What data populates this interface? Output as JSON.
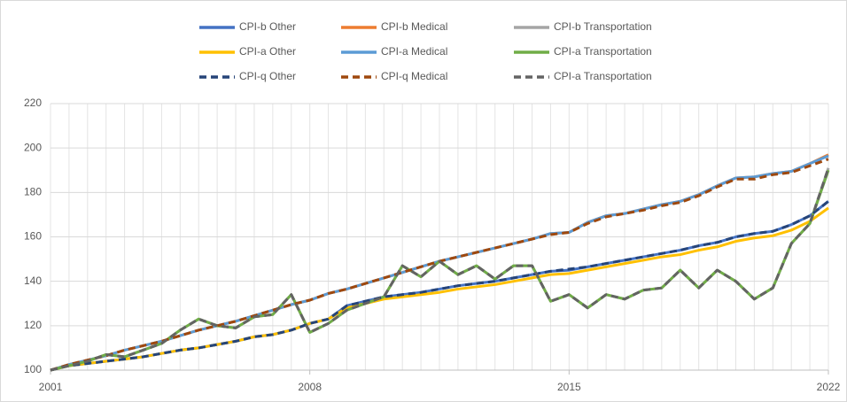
{
  "chart_data": {
    "type": "line",
    "x": [
      2001,
      2001.5,
      2002,
      2002.5,
      2003,
      2003.5,
      2004,
      2004.5,
      2005,
      2005.5,
      2006,
      2006.5,
      2007,
      2007.5,
      2008,
      2008.5,
      2009,
      2009.5,
      2010,
      2010.5,
      2011,
      2011.5,
      2012,
      2012.5,
      2013,
      2013.5,
      2014,
      2014.5,
      2015,
      2015.5,
      2016,
      2016.5,
      2017,
      2017.5,
      2018,
      2018.5,
      2019,
      2019.5,
      2020,
      2020.5,
      2021,
      2021.5,
      2022
    ],
    "xlim": [
      2001,
      2022
    ],
    "xticks": [
      2001,
      2008,
      2015,
      2022
    ],
    "ylim": [
      100,
      220
    ],
    "yticks": [
      100,
      120,
      140,
      160,
      180,
      200,
      220
    ],
    "grid": true,
    "series": [
      {
        "name": "CPI-b Other",
        "color": "#4472c4",
        "style": "solid",
        "values": [
          100,
          102,
          103,
          104,
          105,
          106,
          107.5,
          109,
          110,
          111.5,
          113,
          115,
          116,
          118,
          121,
          123,
          129,
          131,
          133,
          134,
          135,
          136.5,
          138,
          139,
          140,
          141.5,
          143,
          144.5,
          145,
          146.5,
          148,
          149.5,
          151,
          152.5,
          154,
          156,
          157.5,
          160,
          161.5,
          162.5,
          165.5,
          169.5,
          176
        ]
      },
      {
        "name": "CPI-b Medical",
        "color": "#ed7d31",
        "style": "solid",
        "values": [
          100,
          102.5,
          104.5,
          106.5,
          109,
          111,
          113,
          115.5,
          118,
          120,
          122,
          124.5,
          127,
          129.5,
          131.5,
          134.5,
          136.5,
          139,
          141.5,
          144,
          146.5,
          149,
          151,
          153,
          155,
          157,
          159,
          161.5,
          162,
          166.5,
          169.5,
          170.5,
          172.5,
          174.5,
          176,
          179,
          183,
          186.5,
          187,
          188.5,
          189.5,
          193,
          197
        ]
      },
      {
        "name": "CPI-b Transportation",
        "color": "#a5a5a5",
        "style": "solid",
        "values": [
          100,
          102,
          104,
          107,
          106,
          109,
          112,
          118,
          123,
          120,
          119,
          124,
          125,
          134,
          117,
          121,
          127,
          130,
          133,
          147,
          142,
          149,
          143,
          147,
          141,
          147,
          147,
          131,
          134,
          128,
          134,
          132,
          136,
          137,
          145,
          137,
          145,
          140,
          132,
          137,
          157,
          166,
          191
        ]
      },
      {
        "name": "CPI-a Other",
        "color": "#ffc000",
        "style": "solid",
        "values": [
          100,
          102,
          103,
          104,
          105,
          106,
          107.5,
          109,
          110,
          111.5,
          113,
          115,
          116,
          118,
          121,
          123,
          128,
          130,
          132,
          133,
          134,
          135,
          136.5,
          137.5,
          138.5,
          140,
          141.5,
          143,
          143.5,
          145,
          146.5,
          148,
          149.5,
          151,
          152,
          154,
          155.5,
          158,
          159.5,
          160.5,
          163,
          167,
          173
        ]
      },
      {
        "name": "CPI-a Medical",
        "color": "#5b9bd5",
        "style": "solid",
        "values": [
          100,
          102.5,
          104.5,
          106.5,
          109,
          111,
          113,
          115.5,
          118,
          120,
          122,
          124.5,
          127,
          129.5,
          131.5,
          134.5,
          136.5,
          139,
          141.5,
          144,
          146.5,
          149,
          151,
          153,
          155,
          157,
          159,
          161.5,
          162,
          166.5,
          169.5,
          170.5,
          172.5,
          174.5,
          176,
          179,
          183,
          186.5,
          187,
          188.5,
          189.5,
          193,
          196.5
        ]
      },
      {
        "name": "CPI-a Transportation",
        "color": "#70ad47",
        "style": "solid",
        "values": [
          100,
          102,
          104,
          107,
          106,
          109,
          112,
          118,
          123,
          120,
          119,
          124,
          125,
          134,
          117,
          121,
          127,
          130,
          133,
          147,
          142,
          149,
          143,
          147,
          141,
          147,
          147,
          131,
          134,
          128,
          134,
          132,
          136,
          137,
          145,
          137,
          145,
          140,
          132,
          137,
          157,
          166,
          190
        ]
      },
      {
        "name": "CPI-q Other",
        "color": "#264478",
        "style": "dashed",
        "values": [
          100,
          102,
          103,
          104,
          105,
          106,
          107.5,
          109,
          110,
          111.5,
          113,
          115,
          116,
          118,
          121,
          123,
          129,
          131,
          133,
          134,
          135,
          136.5,
          138,
          139,
          140,
          141.5,
          143,
          144.5,
          145.5,
          146.5,
          148,
          149.5,
          151,
          152.5,
          154,
          156,
          157.5,
          160,
          161.5,
          162.5,
          165.5,
          169.5,
          176
        ]
      },
      {
        "name": "CPI-q Medical",
        "color": "#9e480e",
        "style": "dashed",
        "values": [
          100,
          102.5,
          104.5,
          106.5,
          109,
          111,
          113,
          115.5,
          118,
          120,
          122,
          124.5,
          127,
          129.5,
          131.5,
          134.5,
          136.5,
          139,
          141.5,
          144,
          146.5,
          149,
          151,
          153,
          155,
          157,
          159,
          161,
          162,
          166,
          169,
          170.5,
          172,
          174,
          175.5,
          178.5,
          182.5,
          186,
          186,
          188,
          189,
          192,
          195
        ]
      },
      {
        "name": "CPI-a Transportation",
        "color": "#636363",
        "style": "dashed",
        "values": [
          100,
          102,
          104,
          107,
          106,
          109,
          112,
          118,
          123,
          120,
          119,
          124,
          125,
          134,
          117,
          121,
          127,
          130,
          133,
          147,
          142,
          149,
          143,
          147,
          141,
          147,
          147,
          131,
          134,
          128,
          134,
          132,
          136,
          137,
          145,
          137,
          145,
          140,
          132,
          137,
          157,
          166,
          191
        ]
      }
    ]
  }
}
